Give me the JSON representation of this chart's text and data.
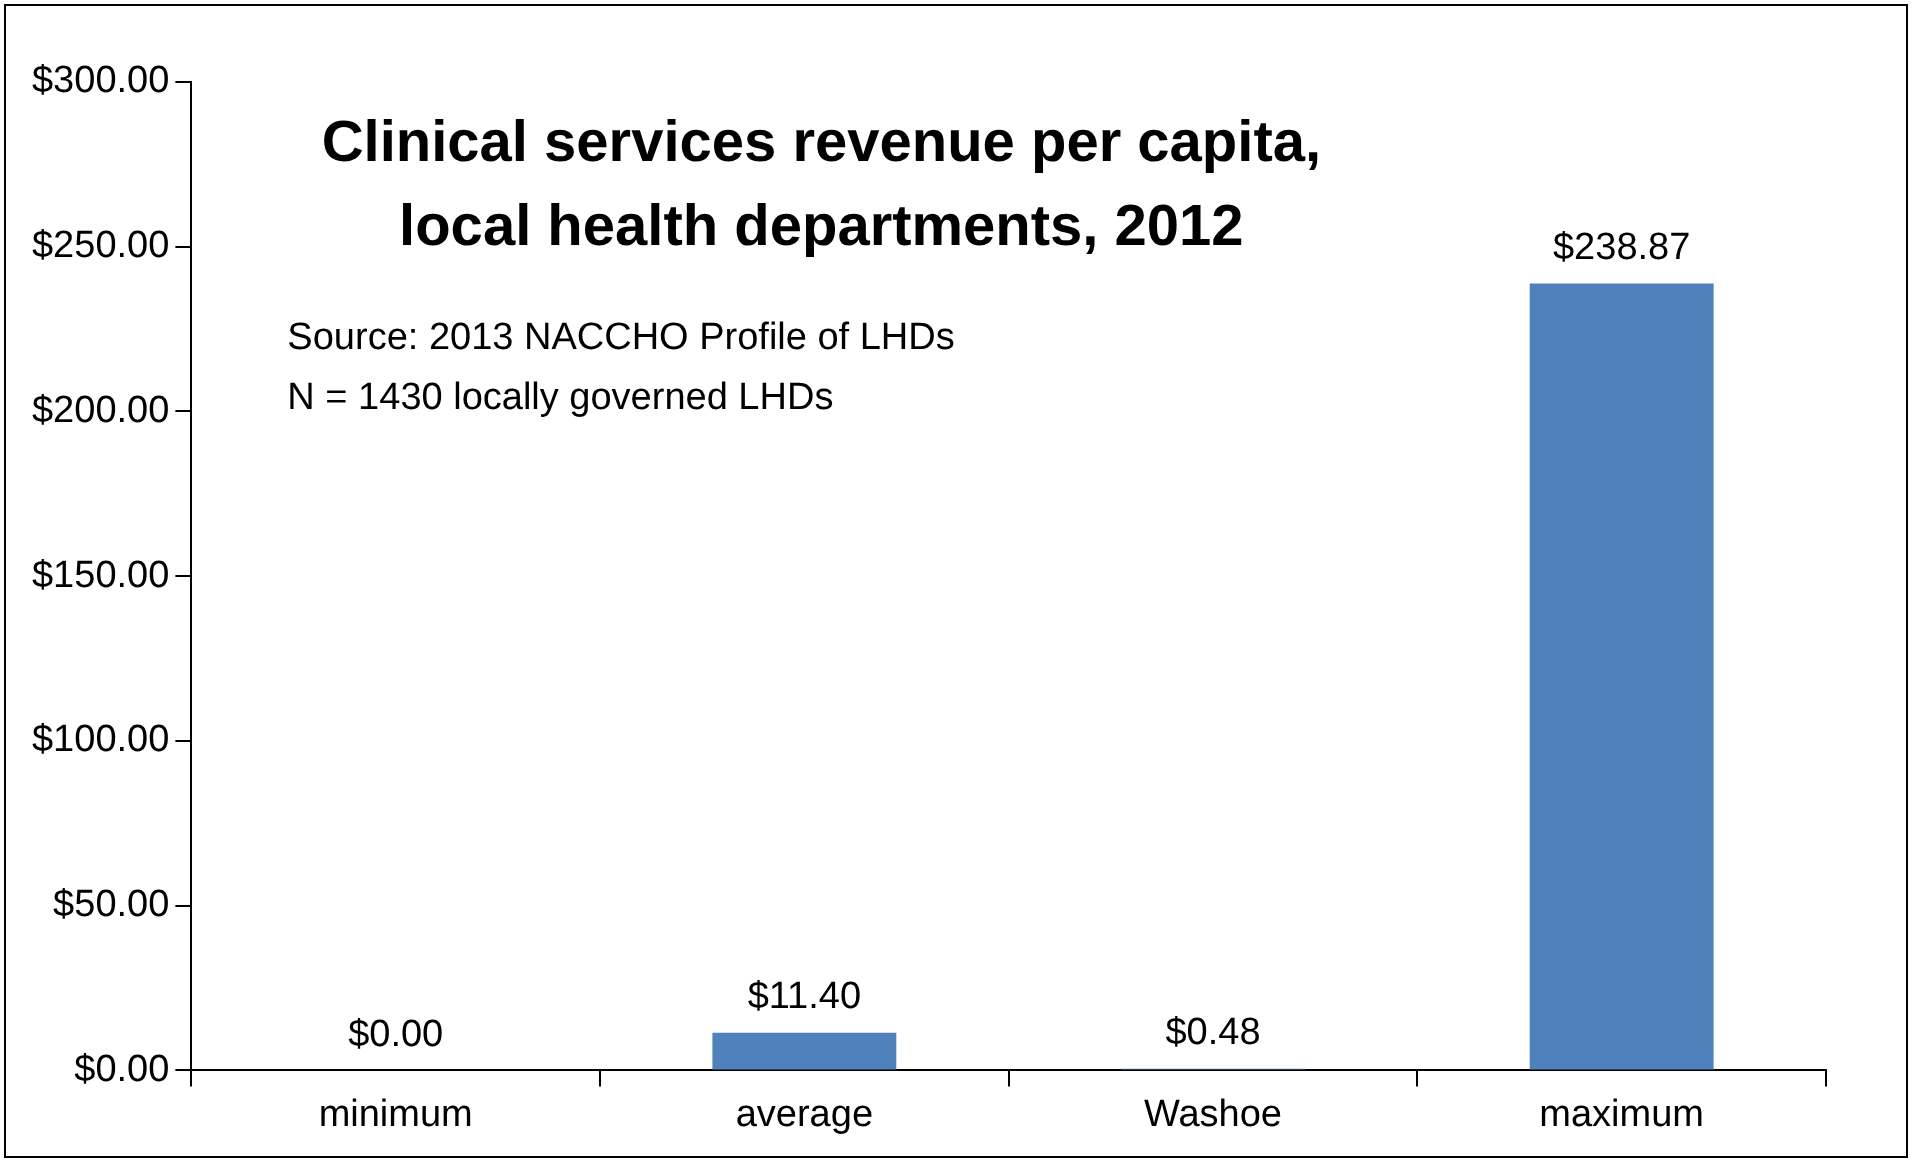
{
  "chart_data": {
    "type": "bar",
    "title": "Clinical services revenue per capita,\nlocal health departments, 2012",
    "categories": [
      "minimum",
      "average",
      "Washoe",
      "maximum"
    ],
    "values": [
      0,
      11.4,
      0.48,
      238.87
    ],
    "value_labels": [
      "$0.00",
      "$11.40",
      "$0.48",
      "$238.87"
    ],
    "color": "#4f81bd",
    "ylim": [
      0,
      300
    ],
    "yticks": [
      {
        "value": 0,
        "label": "$0.00"
      },
      {
        "value": 50,
        "label": "$50.00"
      },
      {
        "value": 100,
        "label": "$100.00"
      },
      {
        "value": 150,
        "label": "$150.00"
      },
      {
        "value": 200,
        "label": "$200.00"
      },
      {
        "value": 250,
        "label": "$250.00"
      },
      {
        "value": 300,
        "label": "$300.00"
      }
    ],
    "annotations": [
      "Source: 2013 NACCHO Profile of LHDs",
      "N = 1430 locally governed LHDs"
    ],
    "grid": false,
    "legend": false
  }
}
